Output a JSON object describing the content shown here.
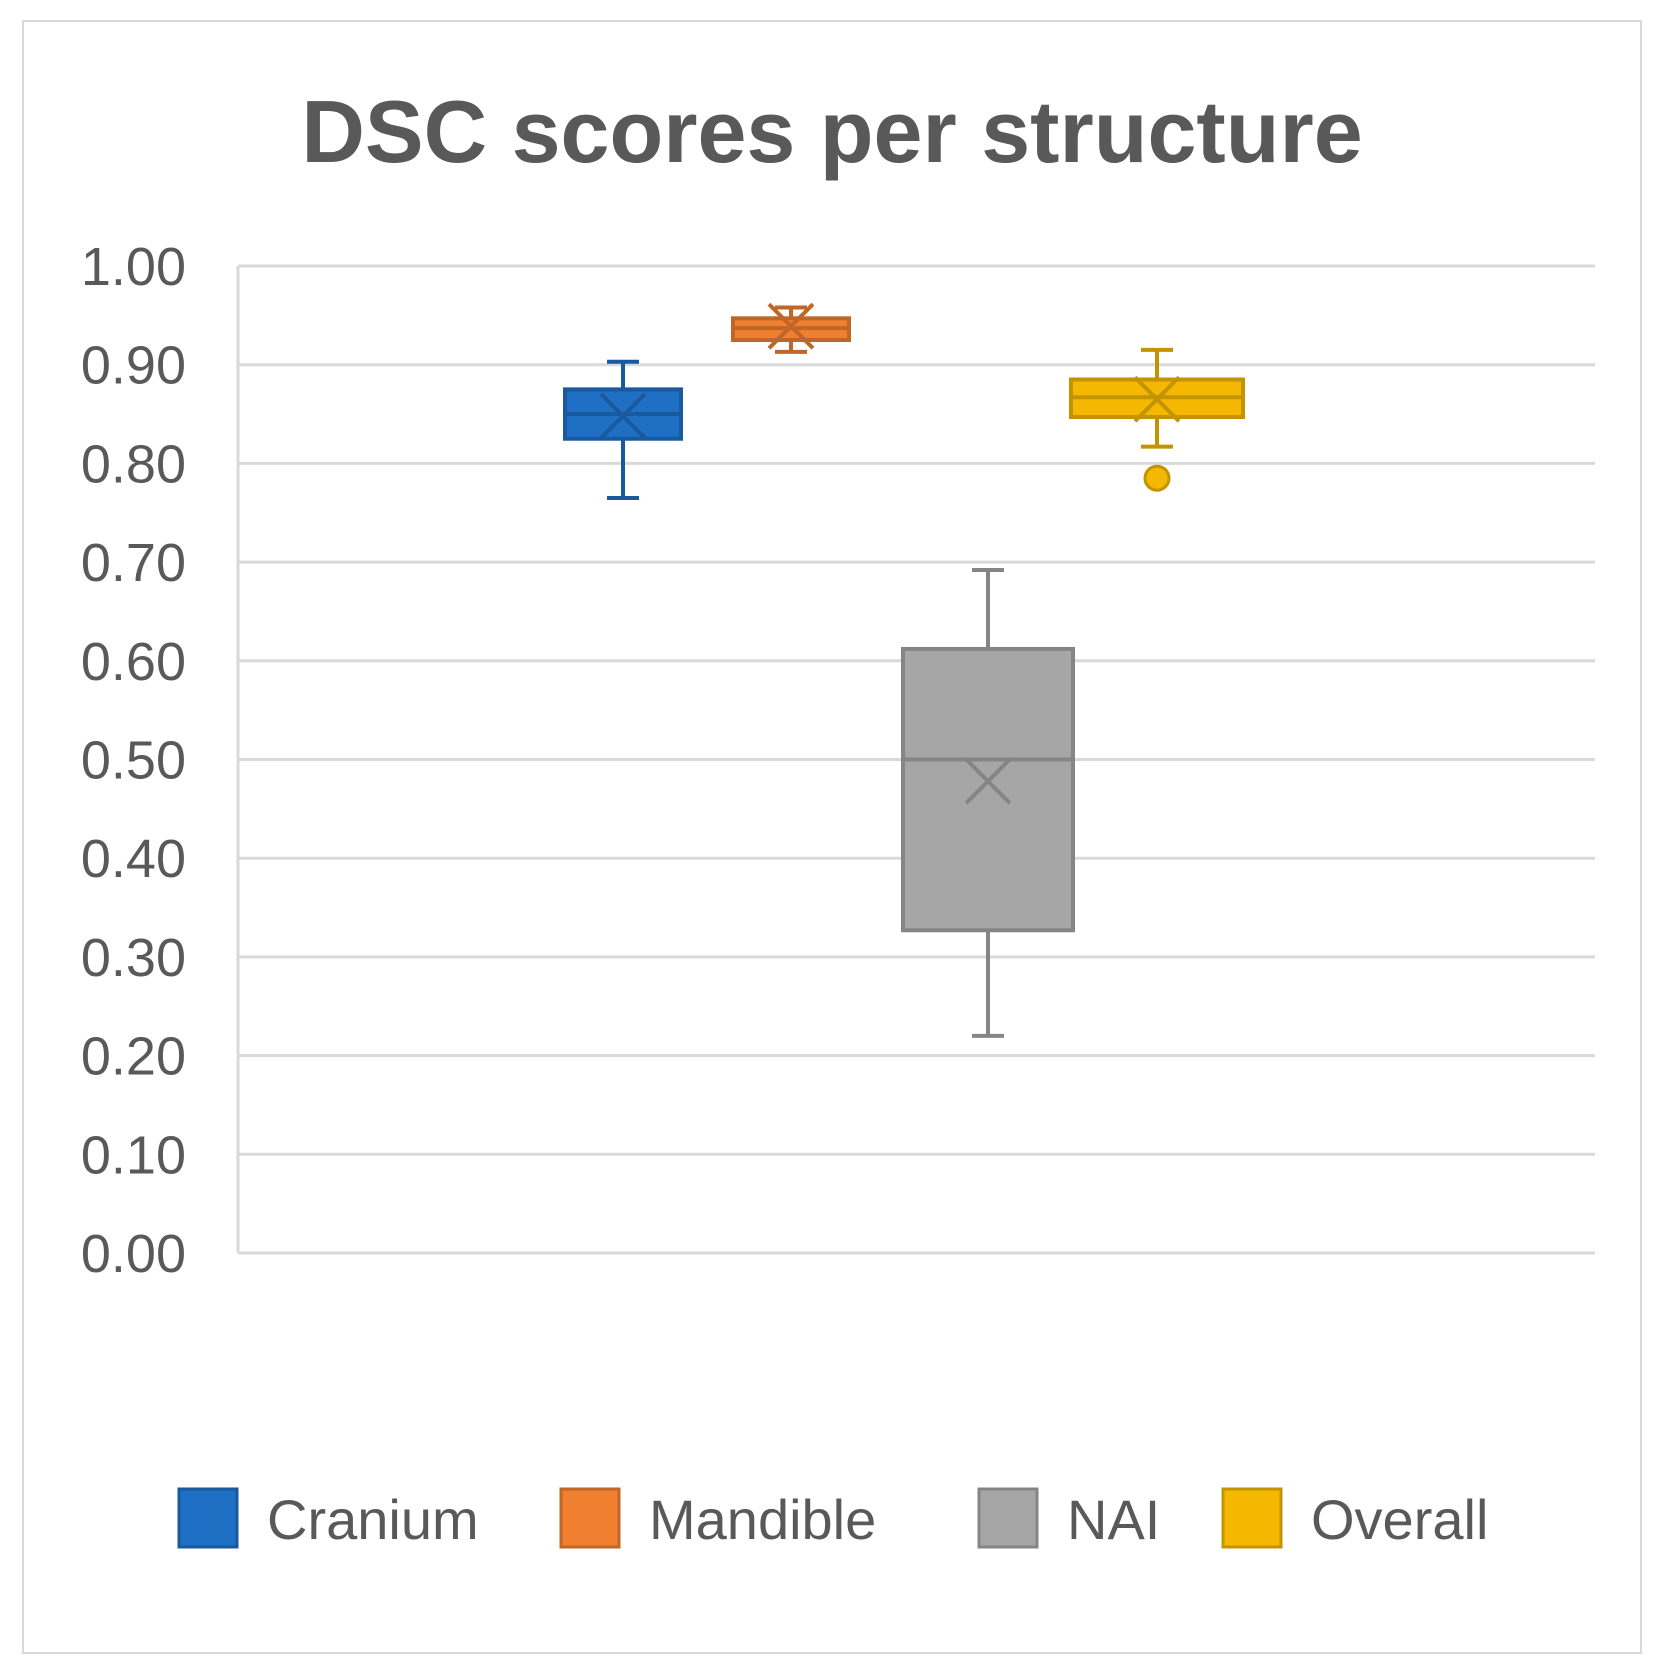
{
  "chart_data": {
    "type": "boxplot",
    "title": "DSC scores per structure",
    "xlabel": "",
    "ylabel": "",
    "ylim": [
      0,
      1
    ],
    "y_ticks": [
      "0.00",
      "0.10",
      "0.20",
      "0.30",
      "0.40",
      "0.50",
      "0.60",
      "0.70",
      "0.80",
      "0.90",
      "1.00"
    ],
    "grid": true,
    "legend_position": "bottom",
    "series": [
      {
        "name": "Cranium",
        "color": "#1f6fc5",
        "min": 0.765,
        "q1": 0.825,
        "median": 0.85,
        "q3": 0.875,
        "max": 0.903,
        "mean": 0.848,
        "outliers": []
      },
      {
        "name": "Mandible",
        "color": "#f07f2f",
        "min": 0.913,
        "q1": 0.925,
        "median": 0.937,
        "q3": 0.947,
        "max": 0.958,
        "mean": 0.939,
        "outliers": []
      },
      {
        "name": "NAI",
        "color": "#a6a6a6",
        "min": 0.22,
        "q1": 0.327,
        "median": 0.5,
        "q3": 0.612,
        "max": 0.692,
        "mean": 0.478,
        "outliers": []
      },
      {
        "name": "Overall",
        "color": "#f5b800",
        "min": 0.817,
        "q1": 0.847,
        "median": 0.867,
        "q3": 0.885,
        "max": 0.915,
        "mean": 0.865,
        "outliers": [
          0.785
        ]
      }
    ]
  }
}
